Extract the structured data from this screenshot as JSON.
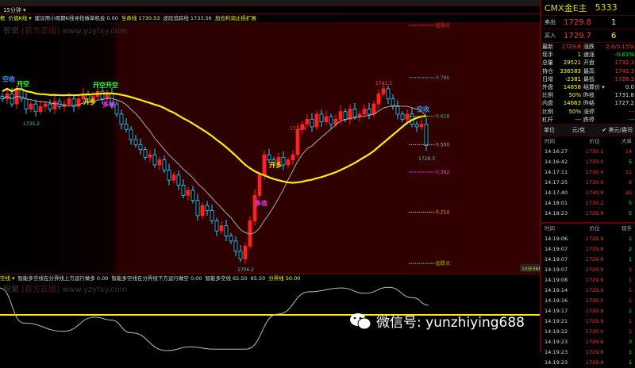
{
  "toolbar": {
    "period": "15分钟 ▾"
  },
  "legend": {
    "items": [
      {
        "t": "框",
        "c": "y"
      },
      {
        "t": "价值K线 ▾",
        "c": "y"
      },
      {
        "t": "建议用小周期K线寻找做单机会 0.00",
        "c": "w"
      },
      {
        "t": "生命线 1730.53",
        "c": "y"
      },
      {
        "t": "波段追踪线 1733.56",
        "c": "w"
      },
      {
        "t": "加仓利润止损扩展",
        "c": "y"
      }
    ]
  },
  "watermark": {
    "brand": "智窠",
    "tag": "[官方正版]",
    "url": "www.yzyfxy.com"
  },
  "indicator": {
    "legend": [
      {
        "t": "空线 ▾",
        "c": "y"
      },
      {
        "t": "智能多空线在分界线上方运行做多 0.00",
        "c": "w"
      },
      {
        "t": "智能多空线在分界线下方运行做空 0.00",
        "c": "w"
      },
      {
        "t": "智能多空线 65.50",
        "c": "w"
      },
      {
        "t": "65.50",
        "c": "w"
      },
      {
        "t": "分界线 50.00",
        "c": "y"
      }
    ],
    "oscillator": [
      [
        0,
        86
      ],
      [
        30,
        39
      ],
      [
        80,
        28
      ],
      [
        120,
        47
      ],
      [
        140,
        43
      ],
      [
        165,
        26
      ],
      [
        210,
        2
      ],
      [
        240,
        7
      ],
      [
        270,
        4
      ],
      [
        310,
        4
      ],
      [
        350,
        51
      ],
      [
        390,
        81
      ],
      [
        430,
        86
      ],
      [
        460,
        79
      ],
      [
        490,
        87
      ],
      [
        520,
        73
      ],
      [
        540,
        63
      ]
    ],
    "divider": 50
  },
  "chart_data": {
    "type": "candlestick",
    "closes": [
      1739,
      1740,
      1738,
      1741,
      1739,
      1737,
      1738,
      1736.5,
      1737.5,
      1738,
      1737,
      1738.5,
      1737.5,
      1738,
      1739,
      1737.5,
      1739,
      1740,
      1738.5,
      1739.5,
      1740.5,
      1739,
      1740,
      1738,
      1736,
      1734,
      1733,
      1731,
      1730,
      1729,
      1727.5,
      1728,
      1726,
      1727,
      1725,
      1723,
      1724,
      1722,
      1720,
      1721,
      1719,
      1716,
      1718,
      1717,
      1715,
      1713,
      1714,
      1712,
      1711,
      1709,
      1707.5,
      1710,
      1715,
      1720,
      1724,
      1728,
      1727,
      1726.5,
      1727.5,
      1726,
      1727,
      1728,
      1733,
      1734,
      1735,
      1733.5,
      1736,
      1734.5,
      1735.5,
      1734,
      1735,
      1736.5,
      1735,
      1737,
      1735.5,
      1736,
      1737,
      1736,
      1738,
      1740,
      1741,
      1739,
      1737.5,
      1736,
      1735,
      1736,
      1734,
      1733.5,
      1734,
      1729.8
    ],
    "up_color": "#ff2020",
    "down_color": "#33ccff",
    "price_labels": [
      {
        "t": "1735.2",
        "i": 6,
        "p": 1735.2
      },
      {
        "t": "1732.4",
        "i": 62,
        "p": 1732.4
      },
      {
        "t": "1741.3",
        "i": 80,
        "p": 1741.3
      },
      {
        "t": "1728.3",
        "i": 89,
        "p": 1728.3
      },
      {
        "t": "1706.2",
        "i": 51,
        "p": 1706.2
      }
    ],
    "signals": [
      {
        "t": "空收",
        "i": 1,
        "p": 1742.5,
        "c": "#3399ff"
      },
      {
        "t": "开空",
        "i": 4,
        "p": 1741.5,
        "c": "#33ff33"
      },
      {
        "t": "开空开空",
        "i": 20,
        "p": 1741.3,
        "c": "#33ff33"
      },
      {
        "t": "开多",
        "i": 18,
        "p": 1738,
        "c": "#e0e000"
      },
      {
        "t": "多收",
        "i": 22,
        "p": 1737.5,
        "c": "#ff33ff"
      },
      {
        "t": "开多",
        "i": 57,
        "p": 1725.5,
        "c": "#e0e000"
      },
      {
        "t": "多收",
        "i": 54,
        "p": 1718,
        "c": "#ff33ff"
      },
      {
        "t": "空收",
        "i": 88,
        "p": 1736.5,
        "c": "#3399ff"
      }
    ],
    "fib_levels": [
      {
        "t": "起涨点",
        "p": 1753.5,
        "c": "#ff3030"
      },
      {
        "t": "0.786",
        "p": 1743.2,
        "c": "#33aacc"
      },
      {
        "t": "0.618",
        "p": 1735.6,
        "c": "#33cc33"
      },
      {
        "t": "0.500",
        "p": 1730,
        "c": "#aaaaaa"
      },
      {
        "t": "0.382",
        "p": 1724.6,
        "c": "#ff33ff"
      },
      {
        "t": "0.214",
        "p": 1716.7,
        "c": "#ff9900"
      },
      {
        "t": "起跌点",
        "p": 1706.6,
        "c": "#99cc00"
      }
    ],
    "countdown": "10分36秒"
  },
  "quote": {
    "title": "CMX金E主",
    "code": "5333",
    "sell": {
      "label": "卖出",
      "price": "1729.8",
      "vol": "1"
    },
    "buy": {
      "label": "买入",
      "price": "1729.7",
      "vol": "6"
    },
    "left": [
      {
        "k": "最新",
        "v": "1729.8",
        "c": "r"
      },
      {
        "k": "现手",
        "v": "1",
        "c": "y"
      },
      {
        "k": "总量",
        "v": "29521",
        "c": "y"
      },
      {
        "k": "持仓",
        "v": "336583",
        "c": "y"
      },
      {
        "k": "日增",
        "v": "-2381",
        "c": "y"
      },
      {
        "k": "外盘",
        "v": "14858",
        "c": "y"
      },
      {
        "k": "比例",
        "v": "50%",
        "c": "y"
      },
      {
        "k": "内盘",
        "v": "14663",
        "c": "y"
      },
      {
        "k": "比例",
        "v": "50%",
        "c": "y"
      },
      {
        "k": "杠杆",
        "v": "---",
        "c": "y"
      }
    ],
    "right": [
      {
        "k": "涨跌",
        "v": "2.6/0.15%",
        "c": "r"
      },
      {
        "k": "速涨",
        "v": "-0.01%",
        "c": "g"
      },
      {
        "k": "开盘",
        "v": "1732.3",
        "c": "r"
      },
      {
        "k": "最高",
        "v": "1741.3",
        "c": "r"
      },
      {
        "k": "最低",
        "v": "1728.3",
        "c": "r"
      },
      {
        "k": "结算价 ▾",
        "v": "0.0",
        "c": "w"
      },
      {
        "k": "昨收",
        "v": "1731.8",
        "c": "w"
      },
      {
        "k": "昨结",
        "v": "1727.2",
        "c": "w"
      },
      {
        "k": "涨停",
        "v": "---",
        "c": "r"
      },
      {
        "k": "跌停",
        "v": "---",
        "c": "g"
      }
    ],
    "unit": {
      "label": "单位",
      "opt1": "元/克",
      "opt2": "✔ 美元/盎司"
    }
  },
  "ticks1": {
    "headers": [
      "时间",
      "价位",
      "大单"
    ],
    "rows": [
      [
        "14:16:27",
        "1730.1",
        "14",
        "r"
      ],
      [
        "14:16:42",
        "1730.0",
        "5",
        "g"
      ],
      [
        "14:17:11",
        "1730.4",
        "11",
        "r"
      ],
      [
        "14:17:25",
        "1730.6",
        "9",
        "r"
      ],
      [
        "14:17:40",
        "1730.8",
        "25",
        "r"
      ],
      [
        "14:18:01",
        "1730.2",
        "5",
        "g"
      ],
      [
        "14:18:23",
        "1729.8",
        "5",
        "g"
      ]
    ]
  },
  "ticks2": {
    "headers": [
      "时间",
      "价位",
      "现手"
    ],
    "rows": [
      [
        "14:19:06",
        "1729.9",
        "1",
        "g"
      ],
      [
        "14:19:07",
        "1729.8",
        "2",
        "g"
      ],
      [
        "14:19:07",
        "1729.8",
        "1",
        "g"
      ],
      [
        "14:19:07",
        "1729.9",
        "1",
        "r"
      ],
      [
        "14:19:08",
        "1729.9",
        "1",
        "r"
      ],
      [
        "14:19:14",
        "1729.9",
        "1",
        "r"
      ],
      [
        "14:19:16",
        "1730.0",
        "1",
        "r"
      ],
      [
        "14:19:17",
        "1729.9",
        "1",
        "g"
      ],
      [
        "14:19:21",
        "1729.9",
        "1",
        "r"
      ],
      [
        "14:19:22",
        "1730.0",
        "1",
        "r"
      ],
      [
        "14:19:23",
        "1729.8",
        "3",
        "g"
      ],
      [
        "14:19:23",
        "1729.8",
        "1",
        "g"
      ],
      [
        "14:19:23",
        "1729.8",
        "1",
        "g"
      ]
    ]
  },
  "wechat": {
    "text": "微信号: yunzhiying688"
  }
}
